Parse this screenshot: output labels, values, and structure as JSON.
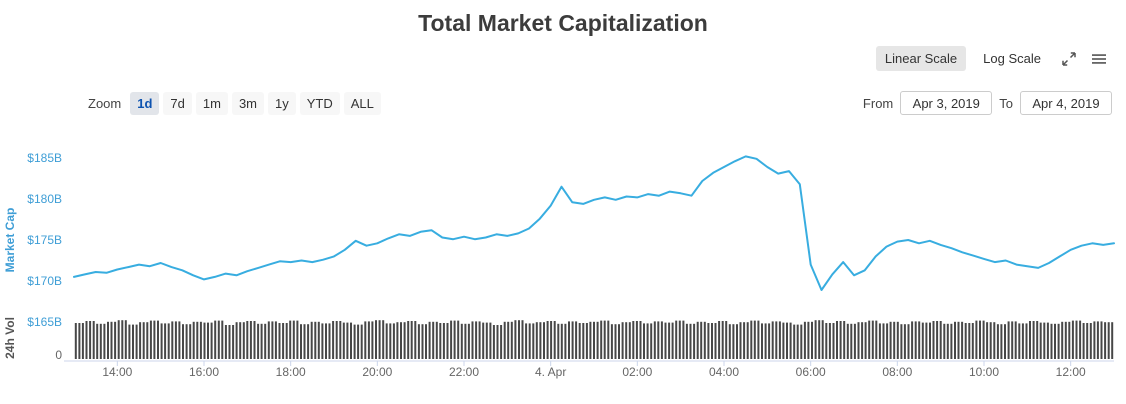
{
  "title": "Total Market Capitalization",
  "scale_controls": {
    "linear_label": "Linear Scale",
    "log_label": "Log Scale",
    "selected": "Linear Scale"
  },
  "toolbar": {
    "zoom_label": "Zoom",
    "buttons": [
      "1d",
      "7d",
      "1m",
      "3m",
      "1y",
      "YTD",
      "ALL"
    ],
    "selected": "1d",
    "from_label": "From",
    "from_value": "Apr 3, 2019",
    "to_label": "To",
    "to_value": "Apr 4, 2019"
  },
  "colors": {
    "line": "#38ade0",
    "axis_label": "#3f9ed6",
    "volume_bar": "#474747",
    "axis_line": "#ccd6eb",
    "x_label": "#666666",
    "vol_label": "#555555"
  },
  "chart_data": {
    "type": "line",
    "title": "Total Market Capitalization",
    "x_start_label": "Apr 3, 2019 13:00",
    "x_end_label": "Apr 4, 2019 13:00",
    "x_hours_span": 24,
    "x_ticks": [
      {
        "hour": 1,
        "label": "14:00"
      },
      {
        "hour": 3,
        "label": "16:00"
      },
      {
        "hour": 5,
        "label": "18:00"
      },
      {
        "hour": 7,
        "label": "20:00"
      },
      {
        "hour": 9,
        "label": "22:00"
      },
      {
        "hour": 11,
        "label": "4. Apr"
      },
      {
        "hour": 13,
        "label": "02:00"
      },
      {
        "hour": 15,
        "label": "04:00"
      },
      {
        "hour": 17,
        "label": "06:00"
      },
      {
        "hour": 19,
        "label": "08:00"
      },
      {
        "hour": 21,
        "label": "10:00"
      },
      {
        "hour": 23,
        "label": "12:00"
      }
    ],
    "y_axis": {
      "title": "Market Cap",
      "unit": "$B",
      "range": [
        165,
        187.5
      ],
      "ticks": [
        {
          "value": 165,
          "label": "$165B"
        },
        {
          "value": 170,
          "label": "$170B"
        },
        {
          "value": 175,
          "label": "$175B"
        },
        {
          "value": 180,
          "label": "$180B"
        },
        {
          "value": 185,
          "label": "$185B"
        }
      ]
    },
    "series": [
      {
        "name": "Market Cap",
        "unit": "$B",
        "interval_minutes": 15,
        "values": [
          170.5,
          170.8,
          171.1,
          171.0,
          171.4,
          171.7,
          172.0,
          171.8,
          172.2,
          171.7,
          171.3,
          170.7,
          170.2,
          170.5,
          170.9,
          170.7,
          171.2,
          171.6,
          172.0,
          172.4,
          172.3,
          172.5,
          172.3,
          172.6,
          173.0,
          173.8,
          174.9,
          174.3,
          174.6,
          175.2,
          175.7,
          175.5,
          176.0,
          176.2,
          175.3,
          175.1,
          175.4,
          175.1,
          175.3,
          175.7,
          175.5,
          175.8,
          176.4,
          177.6,
          179.2,
          181.5,
          179.6,
          179.4,
          179.9,
          180.2,
          179.9,
          180.3,
          180.2,
          180.6,
          180.4,
          180.9,
          180.7,
          180.4,
          182.2,
          183.2,
          183.9,
          184.6,
          185.2,
          184.9,
          183.9,
          183.1,
          183.4,
          181.8,
          172.0,
          168.9,
          170.8,
          172.3,
          170.7,
          171.3,
          173.0,
          174.2,
          174.8,
          175.0,
          174.6,
          174.9,
          174.4,
          174.0,
          173.5,
          173.1,
          172.7,
          172.3,
          172.5,
          172.0,
          171.8,
          171.6,
          172.2,
          173.0,
          173.8,
          174.3,
          174.6,
          174.4,
          174.6
        ]
      }
    ],
    "volume_axis": {
      "title": "24h Vol",
      "zero_label": "0"
    },
    "volume_relative_heights": [
      0.9,
      0.95,
      0.88,
      0.93,
      0.97,
      0.86,
      0.92,
      0.96,
      0.89,
      0.94,
      0.87,
      0.93,
      0.91,
      0.96,
      0.85,
      0.92,
      0.95,
      0.88,
      0.94,
      0.9,
      0.96,
      0.87,
      0.93,
      0.89,
      0.95,
      0.91,
      0.86,
      0.94,
      0.97,
      0.89,
      0.92,
      0.95,
      0.87,
      0.93,
      0.9,
      0.96,
      0.88,
      0.94,
      0.91,
      0.85,
      0.93,
      0.97,
      0.89,
      0.92,
      0.95,
      0.88,
      0.94,
      0.9,
      0.93,
      0.96,
      0.87,
      0.92,
      0.95,
      0.89,
      0.94,
      0.91,
      0.96,
      0.88,
      0.93,
      0.9,
      0.95,
      0.87,
      0.92,
      0.96,
      0.89,
      0.94,
      0.91,
      0.86,
      0.93,
      0.97,
      0.9,
      0.95,
      0.88,
      0.92,
      0.96,
      0.89,
      0.93,
      0.87,
      0.94,
      0.91,
      0.95,
      0.88,
      0.93,
      0.9,
      0.96,
      0.92,
      0.87,
      0.94,
      0.89,
      0.95,
      0.91,
      0.88,
      0.93,
      0.96,
      0.9,
      0.94,
      0.92
    ]
  }
}
